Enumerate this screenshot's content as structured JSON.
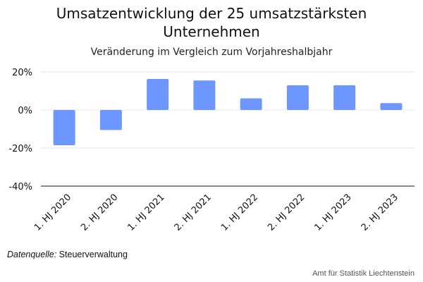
{
  "chart_data": {
    "type": "bar",
    "title": "Umsatzentwicklung der 25 umsatzstärksten Unternehmen",
    "subtitle": "Veränderung im Vergleich zum Vorjahreshalbjahr",
    "categories": [
      "1. HJ 2020",
      "2. HJ 2020",
      "1. HJ 2021",
      "2. HJ 2021",
      "1. HJ 2022",
      "2. HJ 2022",
      "1. HJ 2023",
      "2. HJ 2023"
    ],
    "values": [
      -18.5,
      -10.5,
      16.3,
      15.5,
      6.1,
      13.0,
      13.0,
      3.6
    ],
    "unit": "%",
    "ylim": [
      -40,
      20
    ],
    "yticks": [
      20,
      0,
      -20,
      -40
    ],
    "ytick_labels": [
      "20%",
      "0%",
      "-20%",
      "-40%"
    ],
    "bar_color": "#6e96ff",
    "grid": true
  },
  "footer": {
    "source_label": "Datenquelle:",
    "source_value": " Steuerverwaltung",
    "credit": "Amt für Statistik Liechtenstein"
  }
}
